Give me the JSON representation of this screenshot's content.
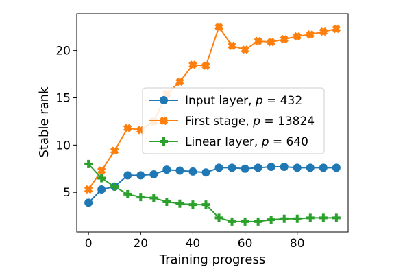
{
  "chart_data": {
    "type": "line",
    "xlabel": "Training progress",
    "ylabel": "Stable rank",
    "xlim": [
      -4.5,
      99.5
    ],
    "ylim": [
      0.8,
      23.9
    ],
    "xticks": [
      0,
      20,
      40,
      60,
      80
    ],
    "yticks": [
      5,
      10,
      15,
      20
    ],
    "legend_position": "center-right",
    "x": [
      0,
      5,
      10,
      15,
      20,
      25,
      30,
      35,
      40,
      45,
      50,
      55,
      60,
      65,
      70,
      75,
      80,
      85,
      90,
      95
    ],
    "series": [
      {
        "name": "Input layer,",
        "param": "p",
        "param_value": "432",
        "color": "#1f77b4",
        "marker": "circle",
        "values": [
          3.9,
          5.3,
          5.6,
          6.8,
          6.8,
          6.9,
          7.4,
          7.3,
          7.2,
          7.1,
          7.6,
          7.6,
          7.5,
          7.6,
          7.7,
          7.7,
          7.6,
          7.6,
          7.6,
          7.6
        ]
      },
      {
        "name": "First stage,",
        "param": "p",
        "param_value": "13824",
        "color": "#ff7f0e",
        "marker": "x",
        "values": [
          5.3,
          7.3,
          9.4,
          11.8,
          11.6,
          12.5,
          15.4,
          16.7,
          18.5,
          18.4,
          22.5,
          20.5,
          20.1,
          21.0,
          20.9,
          21.2,
          21.5,
          21.7,
          22.0,
          22.3
        ]
      },
      {
        "name": "Linear layer,",
        "param": "p",
        "param_value": "640",
        "color": "#2ca02c",
        "marker": "plus",
        "values": [
          8.0,
          6.5,
          5.6,
          4.8,
          4.5,
          4.4,
          4.0,
          3.8,
          3.7,
          3.7,
          2.3,
          1.9,
          1.9,
          1.9,
          2.1,
          2.2,
          2.2,
          2.3,
          2.3,
          2.3
        ]
      }
    ]
  }
}
